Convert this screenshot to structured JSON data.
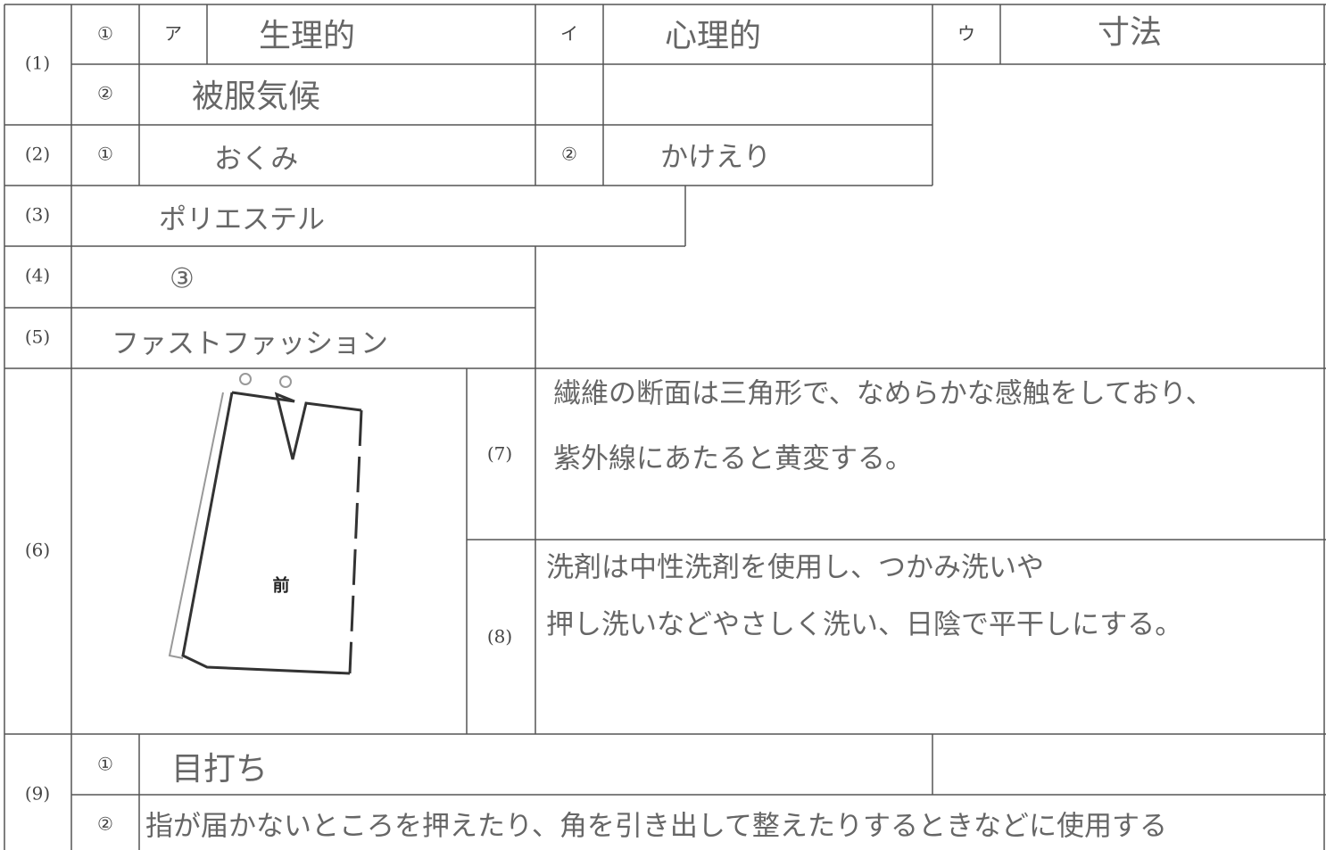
{
  "sheet": {
    "q1": {
      "label": "(1)",
      "r1": {
        "num": "①",
        "a_key": "ア",
        "a": "生理的",
        "b_key": "イ",
        "b": "心理的",
        "c_key": "ウ",
        "c": "寸法"
      },
      "r2": {
        "num": "②",
        "a": "被服気候"
      }
    },
    "q2": {
      "label": "(2)",
      "num1": "①",
      "a1": "おくみ",
      "num2": "②",
      "a2": "かけえり"
    },
    "q3": {
      "label": "(3)",
      "a": "ポリエステル"
    },
    "q4": {
      "label": "(4)",
      "a": "③"
    },
    "q5": {
      "label": "(5)",
      "a": "ファストファッション"
    },
    "q6": {
      "label": "(6)",
      "figure_label": "前"
    },
    "q7": {
      "label": "(7)",
      "lines": [
        "繊維の断面は三角形で、なめらかな感触をしており、",
        "紫外線にあたると黄変する。"
      ]
    },
    "q8": {
      "label": "(8)",
      "lines": [
        "洗剤は中性洗剤を使用し、つかみ洗いや",
        "押し洗いなどやさしく洗い、日陰で平干しにする。"
      ]
    },
    "q9": {
      "label": "(9)",
      "num1": "①",
      "a1": "目打ち",
      "num2": "②",
      "a2": "指が届かないところを押えたり、角を引き出して整えたりするときなどに使用する"
    }
  }
}
